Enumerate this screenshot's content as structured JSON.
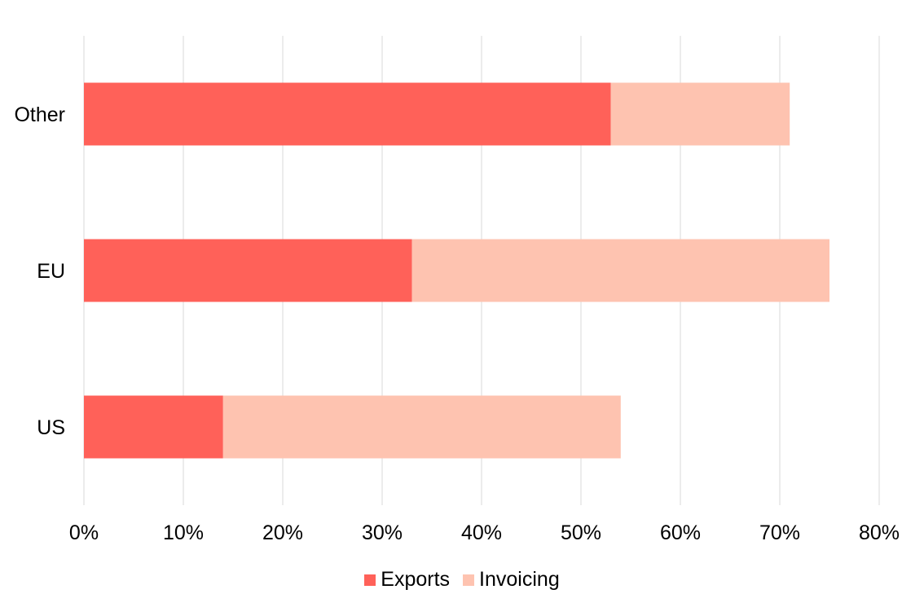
{
  "chart_data": {
    "type": "bar",
    "orientation": "horizontal",
    "stacked": true,
    "categories": [
      "Other",
      "EU",
      "US"
    ],
    "series": [
      {
        "name": "Exports",
        "values": [
          53,
          33,
          14
        ],
        "color": "#ff6159"
      },
      {
        "name": "Invoicing",
        "values": [
          18,
          42,
          40
        ],
        "color": "#fec3b0"
      }
    ],
    "xlim": [
      0,
      80
    ],
    "xticks": [
      "0%",
      "10%",
      "20%",
      "30%",
      "40%",
      "50%",
      "60%",
      "70%",
      "80%"
    ],
    "grid": "vertical",
    "legend": "bottom-center",
    "title": "",
    "xlabel": "",
    "ylabel": ""
  }
}
